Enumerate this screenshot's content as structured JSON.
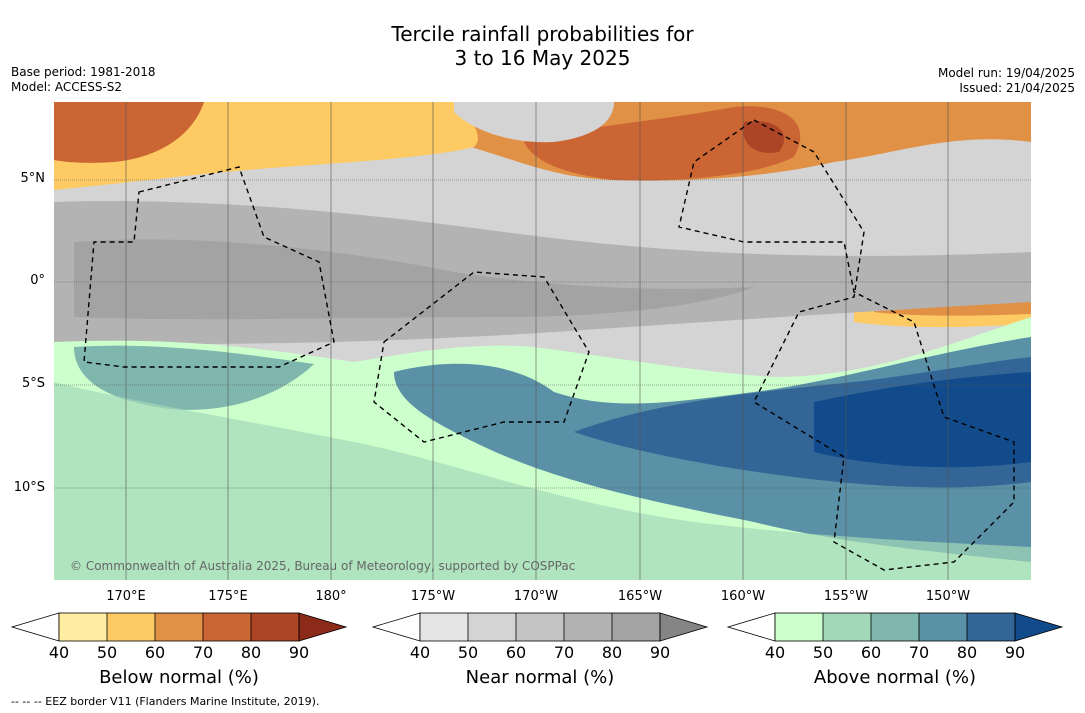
{
  "title_line1": "Tercile rainfall probabilities for",
  "title_line2": "3 to 16 May 2025",
  "base_period": "Base period: 1981-2018",
  "model": "Model: ACCESS-S2",
  "model_run": "Model run: 19/04/2025",
  "issued": "Issued: 21/04/2025",
  "copyright": "© Commonwealth of Australia 2025, Bureau of Meteorology, supported by COSPPac",
  "eez_note": "--  --  -- EEZ border V11 (Flanders Marine Institute, 2019).",
  "lat_labels": [
    "5°N",
    "0°",
    "5°S",
    "10°S"
  ],
  "lon_labels": [
    "170°E",
    "175°E",
    "180°",
    "175°W",
    "170°W",
    "165°W",
    "160°W",
    "155°W",
    "150°W"
  ],
  "colorbars": [
    {
      "title": "Below normal (%)",
      "ticks": [
        "40",
        "50",
        "60",
        "70",
        "80",
        "90"
      ],
      "colors": [
        "#ffeea1",
        "#fdca63",
        "#e09146",
        "#cb6533",
        "#ad4426",
        "#8c2a1a"
      ]
    },
    {
      "title": "Near normal (%)",
      "ticks": [
        "40",
        "50",
        "60",
        "70",
        "80",
        "90"
      ],
      "colors": [
        "#e5e5e5",
        "#d4d4d4",
        "#c4c4c4",
        "#b3b3b3",
        "#a3a3a3",
        "#858585"
      ]
    },
    {
      "title": "Above normal (%)",
      "ticks": [
        "40",
        "50",
        "60",
        "70",
        "80",
        "90"
      ],
      "colors": [
        "#ccffcc",
        "#a3d9b8",
        "#7fb6ad",
        "#5a91a6",
        "#336596",
        "#124b8b"
      ]
    }
  ]
}
